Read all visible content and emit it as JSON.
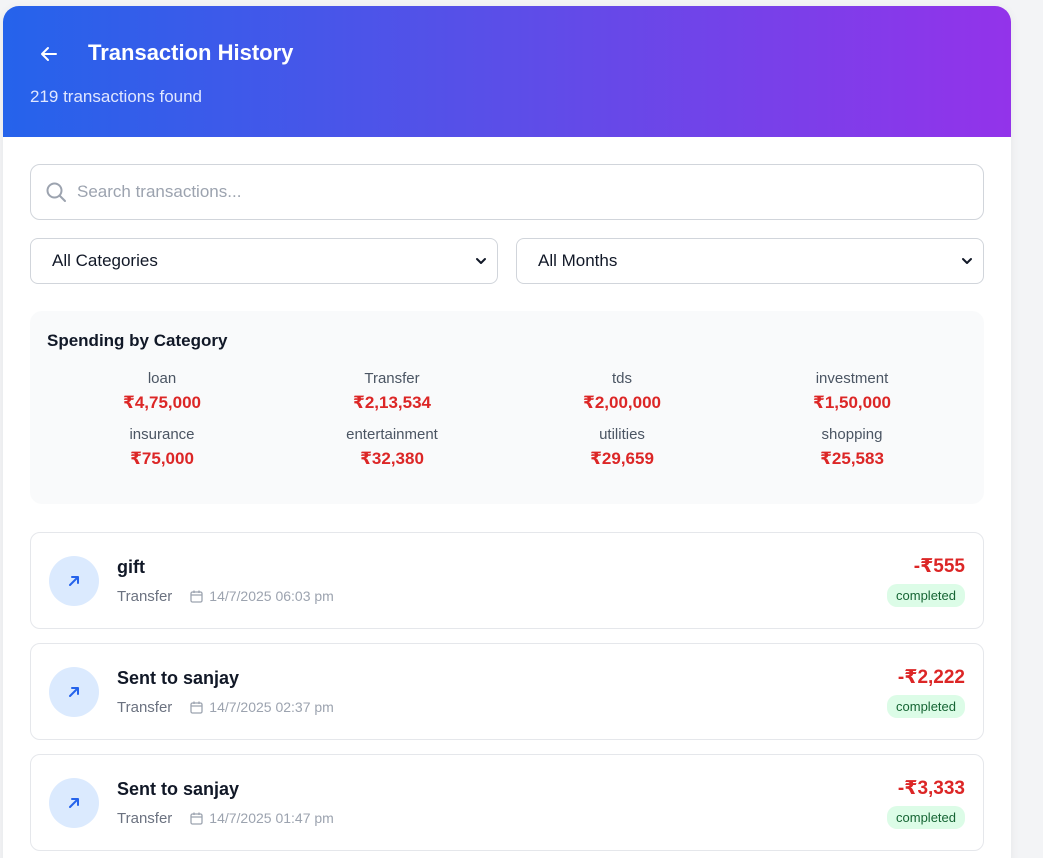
{
  "header": {
    "title": "Transaction History",
    "subtitle": "219 transactions found"
  },
  "search": {
    "placeholder": "Search transactions...",
    "value": ""
  },
  "filters": {
    "category": "All Categories",
    "month": "All Months"
  },
  "summary": {
    "title": "Spending by Category",
    "categories": [
      {
        "name": "loan",
        "amount": "₹4,75,000"
      },
      {
        "name": "Transfer",
        "amount": "₹2,13,534"
      },
      {
        "name": "tds",
        "amount": "₹2,00,000"
      },
      {
        "name": "investment",
        "amount": "₹1,50,000"
      },
      {
        "name": "insurance",
        "amount": "₹75,000"
      },
      {
        "name": "entertainment",
        "amount": "₹32,380"
      },
      {
        "name": "utilities",
        "amount": "₹29,659"
      },
      {
        "name": "shopping",
        "amount": "₹25,583"
      }
    ]
  },
  "transactions": [
    {
      "title": "gift",
      "category": "Transfer",
      "date": "14/7/2025 06:03 pm",
      "amount": "-₹555",
      "status": "completed"
    },
    {
      "title": "Sent to sanjay",
      "category": "Transfer",
      "date": "14/7/2025 02:37 pm",
      "amount": "-₹2,222",
      "status": "completed"
    },
    {
      "title": "Sent to sanjay",
      "category": "Transfer",
      "date": "14/7/2025 01:47 pm",
      "amount": "-₹3,333",
      "status": "completed"
    }
  ],
  "colors": {
    "gradient_start": "#2563eb",
    "gradient_end": "#9333ea",
    "debit": "#dc2626",
    "status_bg": "#dcfce7"
  }
}
